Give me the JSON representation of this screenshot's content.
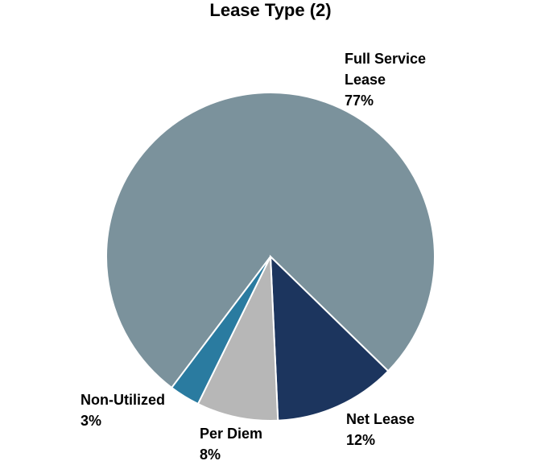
{
  "chart_data": {
    "type": "pie",
    "title": "Lease Type (2)",
    "categories": [
      "Full Service Lease",
      "Net Lease",
      "Per Diem",
      "Non-Utilized"
    ],
    "values": [
      77,
      12,
      8,
      3
    ],
    "value_labels": [
      "77%",
      "12%",
      "8%",
      "3%"
    ],
    "colors": [
      "#7b929c",
      "#1c355e",
      "#b7b7b7",
      "#2a7ba0"
    ]
  }
}
